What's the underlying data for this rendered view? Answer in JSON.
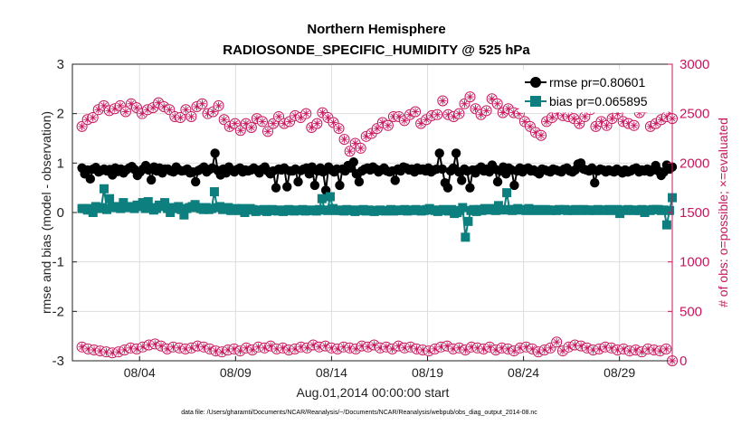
{
  "chart_data": {
    "type": "line",
    "title": "Northern Hemisphere",
    "subtitle": "RADIOSONDE_SPECIFIC_HUMIDITY @ 525 hPa",
    "xlabel": "Aug.01,2014 00:00:00 start",
    "ylabel_left": "rmse and bias (model - observation)",
    "ylabel_right": "# of obs: o=possible; ×=evaluated",
    "footnote": "data file: /Users/gharamti/Documents/NCAR/Reanalysis/~/Documents/NCAR/Reanalysis/webpub/obs_diag_output_2014-08.nc",
    "xlim": [
      0.5,
      31.75
    ],
    "ylim_left": [
      -3,
      3
    ],
    "ylim_right": [
      0,
      3000
    ],
    "x_ticks": [
      4,
      9,
      14,
      19,
      24,
      29
    ],
    "x_tick_labels": [
      "08/04",
      "08/09",
      "08/14",
      "08/19",
      "08/24",
      "08/29"
    ],
    "y_left_ticks": [
      -3,
      -2,
      -1,
      0,
      1,
      2,
      3
    ],
    "y_left_tick_labels": [
      "-3",
      "-2",
      "-1",
      "0",
      "1",
      "2",
      "3"
    ],
    "y_right_ticks": [
      0,
      500,
      1000,
      1500,
      2000,
      2500,
      3000
    ],
    "y_right_tick_labels": [
      "0",
      "500",
      "1000",
      "1500",
      "2000",
      "2500",
      "3000"
    ],
    "grid": true,
    "legend_position": "top-right",
    "colors": {
      "rmse": "#000000",
      "bias": "#0d7f7f",
      "obs": "#c8175e",
      "grid": "#dddddd",
      "zero_line": "#dddddd"
    },
    "series": [
      {
        "name": "rmse pr=0.80601",
        "key": "rmse",
        "axis": "left",
        "marker": "circle",
        "values": [
          0.9,
          0.78,
          0.86,
          0.68,
          0.88,
          0.91,
          0.82,
          0.85,
          0.88,
          0.84,
          0.87,
          0.76,
          0.9,
          0.83,
          0.88,
          0.8,
          0.86,
          0.9,
          0.93,
          0.87,
          0.75,
          0.82,
          0.88,
          0.95,
          0.86,
          0.66,
          0.92,
          0.84,
          0.9,
          0.8,
          0.88,
          0.88,
          0.84,
          0.82,
          0.92,
          0.86,
          0.84,
          0.85,
          0.88,
          0.8,
          0.82,
          0.62,
          0.85,
          0.88,
          0.92,
          0.82,
          0.87,
          0.9,
          1.2,
          0.85,
          0.76,
          0.88,
          0.8,
          0.92,
          0.86,
          0.82,
          0.87,
          0.9,
          0.82,
          0.86,
          0.84,
          0.86,
          0.9,
          0.86,
          0.8,
          0.88,
          0.92,
          0.84,
          0.78,
          0.84,
          0.5,
          0.88,
          0.86,
          0.9,
          0.52,
          0.84,
          0.84,
          0.88,
          0.62,
          0.85,
          0.88,
          0.9,
          0.78,
          0.92,
          0.55,
          0.84,
          0.9,
          0.82,
          0.45,
          0.92,
          0.86,
          0.82,
          0.88,
          0.55,
          0.88,
          0.84,
          0.95,
          0.9,
          1.02,
          0.78,
          0.62,
          0.84,
          0.88,
          0.9,
          0.86,
          0.92,
          0.88,
          0.82,
          0.86,
          0.9,
          0.84,
          0.82,
          0.84,
          0.65,
          0.88,
          0.84,
          0.92,
          0.9,
          0.86,
          0.88,
          0.82,
          0.9,
          0.86,
          0.88,
          0.84,
          0.9,
          0.82,
          0.86,
          0.88,
          1.2,
          0.88,
          0.6,
          0.5,
          0.84,
          0.9,
          1.2,
          0.82,
          0.65,
          0.88,
          0.84,
          0.5,
          0.86,
          0.8,
          0.88,
          0.92,
          0.84,
          0.88,
          0.82,
          0.96,
          0.88,
          0.62,
          0.84,
          0.92,
          0.78,
          0.9,
          0.86,
          0.55,
          0.84,
          0.9,
          0.82,
          0.88,
          0.9,
          0.84,
          0.86,
          0.82,
          0.78,
          0.88,
          0.86,
          0.84,
          0.82,
          0.88,
          0.86,
          0.84,
          0.82,
          0.88,
          0.9,
          0.84,
          0.82,
          0.86,
          0.98,
          1.0,
          0.88,
          0.86,
          0.84,
          0.9,
          0.6,
          0.84,
          0.88,
          0.86,
          0.82,
          0.86,
          0.84,
          0.82,
          0.88,
          0.84,
          0.8,
          0.86,
          0.82,
          0.84,
          0.88,
          0.9,
          0.82,
          0.86,
          0.84,
          0.88,
          0.82,
          0.86,
          0.95,
          0.84,
          0.75,
          0.82,
          0.96,
          0.88,
          0.92
        ]
      },
      {
        "name": "bias pr=0.065895",
        "key": "bias",
        "axis": "left",
        "marker": "square",
        "values": [
          0.08,
          0.08,
          0.05,
          0.08,
          0.0,
          0.12,
          0.08,
          0.1,
          0.48,
          0.06,
          0.28,
          0.1,
          0.12,
          0.1,
          0.08,
          0.2,
          0.1,
          0.1,
          0.12,
          0.08,
          0.15,
          0.12,
          0.2,
          0.08,
          0.22,
          0.1,
          0.05,
          0.08,
          0.15,
          0.12,
          0.2,
          0.08,
          0.0,
          0.1,
          0.08,
          0.12,
          0.06,
          -0.05,
          0.08,
          0.1,
          0.12,
          0.16,
          0.1,
          0.08,
          0.06,
          0.1,
          0.06,
          0.08,
          0.42,
          0.1,
          0.12,
          0.06,
          0.08,
          0.1,
          0.04,
          0.06,
          0.08,
          0.04,
          0.08,
          0.0,
          0.05,
          0.08,
          0.06,
          0.02,
          0.04,
          0.05,
          0.06,
          0.02,
          0.04,
          0.06,
          0.04,
          0.03,
          0.05,
          0.02,
          0.04,
          0.06,
          0.04,
          0.03,
          0.05,
          0.04,
          0.06,
          0.03,
          0.04,
          0.05,
          0.04,
          0.03,
          0.06,
          0.28,
          0.05,
          0.04,
          0.32,
          0.08,
          0.04,
          0.05,
          0.04,
          0.03,
          0.06,
          0.05,
          0.04,
          0.02,
          0.05,
          0.04,
          0.06,
          0.03,
          0.05,
          0.04,
          0.02,
          0.04,
          0.05,
          0.04,
          0.03,
          0.04,
          0.06,
          0.03,
          0.04,
          0.05,
          0.04,
          0.06,
          0.03,
          0.05,
          0.04,
          0.06,
          0.05,
          0.03,
          0.04,
          0.06,
          0.08,
          0.05,
          0.04,
          0.02,
          0.05,
          0.06,
          0.04,
          0.03,
          0.06,
          -0.02,
          0.0,
          0.04,
          0.1,
          -0.5,
          -0.18,
          0.04,
          0.06,
          0.02,
          0.06,
          0.04,
          0.08,
          0.05,
          0.06,
          0.08,
          0.04,
          0.14,
          0.06,
          0.05,
          0.4,
          0.06,
          0.04,
          0.06,
          0.08,
          0.05,
          0.06,
          0.04,
          0.08,
          0.05,
          0.04,
          0.06,
          0.05,
          0.04,
          0.06,
          0.05,
          0.04,
          0.05,
          0.04,
          0.06,
          0.05,
          0.06,
          0.04,
          0.05,
          0.04,
          0.06,
          0.05,
          0.04,
          0.06,
          0.05,
          0.04,
          0.05,
          0.04,
          0.06,
          0.05,
          0.04,
          0.05,
          0.06,
          0.04,
          0.05,
          0.06,
          -0.02,
          0.05,
          0.04,
          0.06,
          0.05,
          0.04,
          0.05,
          0.04,
          0.06,
          0.0,
          0.05,
          0.04,
          0.06,
          0.06,
          0.06,
          0.04,
          0.05,
          -0.25,
          0.04,
          0.3
        ]
      },
      {
        "name": "# of obs possible (top)",
        "key": "obs_top",
        "axis": "right",
        "marker": "circle-star",
        "values": [
          2370,
          2440,
          2460,
          2540,
          2580,
          2530,
          2550,
          2580,
          2520,
          2600,
          2560,
          2500,
          2540,
          2560,
          2610,
          2570,
          2540,
          2470,
          2460,
          2540,
          2470,
          2570,
          2600,
          2500,
          2520,
          2580,
          2440,
          2370,
          2400,
          2330,
          2400,
          2360,
          2450,
          2420,
          2320,
          2400,
          2470,
          2400,
          2420,
          2480,
          2460,
          2500,
          2360,
          2400,
          2510,
          2460,
          2410,
          2350,
          2240,
          2120,
          2200,
          2150,
          2270,
          2300,
          2350,
          2410,
          2380,
          2470,
          2470,
          2430,
          2490,
          2520,
          2400,
          2440,
          2480,
          2490,
          2630,
          2490,
          2470,
          2500,
          2600,
          2670,
          2550,
          2490,
          2530,
          2650,
          2600,
          2510,
          2550,
          2510,
          2500,
          2420,
          2370,
          2310,
          2280,
          2420,
          2460,
          2500,
          2480,
          2470,
          2450,
          2400,
          2470,
          2540,
          2370,
          2420,
          2380,
          2450,
          2500,
          2420,
          2400,
          2380,
          2510,
          2560,
          2370,
          2400,
          2440,
          2470,
          2450
        ]
      },
      {
        "name": "# of obs evaluated (bottom)",
        "key": "obs_bottom",
        "axis": "right",
        "marker": "circle-star",
        "values": [
          140,
          120,
          110,
          100,
          90,
          80,
          90,
          110,
          130,
          120,
          140,
          160,
          170,
          150,
          120,
          140,
          130,
          120,
          130,
          150,
          140,
          120,
          100,
          90,
          110,
          120,
          100,
          130,
          110,
          140,
          130,
          150,
          120,
          130,
          110,
          120,
          140,
          130,
          160,
          140,
          150,
          130,
          120,
          140,
          130,
          120,
          150,
          140,
          160,
          130,
          140,
          120,
          150,
          130,
          140,
          120,
          110,
          100,
          120,
          140,
          150,
          120,
          130,
          110,
          140,
          130,
          120,
          140,
          110,
          130,
          120,
          100,
          130,
          140,
          120,
          90,
          110,
          130,
          190,
          100,
          140,
          160,
          150,
          130,
          110,
          120,
          140,
          130,
          110,
          120,
          100,
          110,
          90,
          120,
          110,
          100,
          120,
          0
        ]
      }
    ],
    "legend": [
      {
        "label": "rmse pr=0.80601",
        "key": "rmse"
      },
      {
        "label": "bias pr=0.065895",
        "key": "bias"
      }
    ]
  }
}
